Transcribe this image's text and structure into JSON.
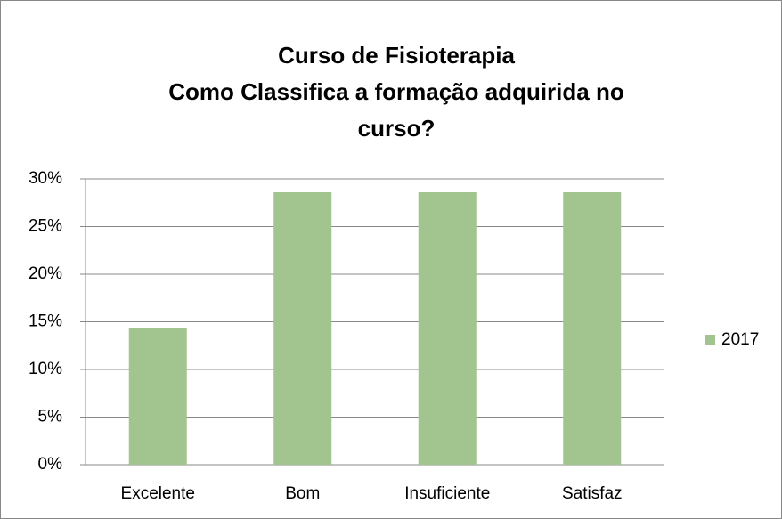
{
  "chart_data": {
    "type": "bar",
    "title": [
      "Curso de Fisioterapia",
      "Como Classifica a formação adquirida no curso?"
    ],
    "categories": [
      "Excelente",
      "Bom",
      "Insuficiente",
      "Satisfaz"
    ],
    "series": [
      {
        "name": "2017",
        "color": "#a2c48e",
        "values": [
          14.3,
          28.6,
          28.6,
          28.6
        ]
      }
    ],
    "ylim": [
      0,
      30
    ],
    "yticks": [
      {
        "value": 0,
        "label": "0%"
      },
      {
        "value": 5,
        "label": "5%"
      },
      {
        "value": 10,
        "label": "10%"
      },
      {
        "value": 15,
        "label": "15%"
      },
      {
        "value": 20,
        "label": "20%"
      },
      {
        "value": 25,
        "label": "25%"
      },
      {
        "value": 30,
        "label": "30%"
      }
    ],
    "grid": true,
    "legend": "right"
  }
}
